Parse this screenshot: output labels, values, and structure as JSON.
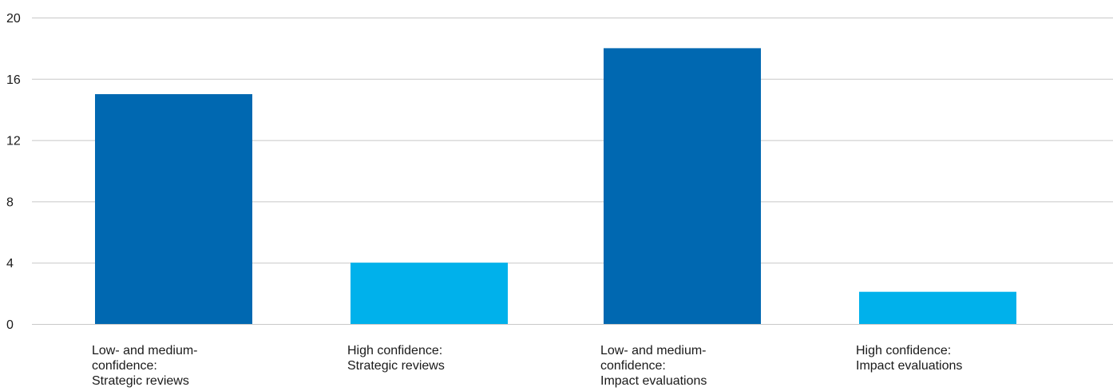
{
  "chart_data": {
    "type": "bar",
    "categories": [
      [
        "Low- and medium-",
        "confidence:",
        "Strategic reviews"
      ],
      [
        "High confidence:",
        "Strategic reviews"
      ],
      [
        "Low- and medium-",
        "confidence:",
        "Impact evaluations"
      ],
      [
        "High confidence:",
        "Impact evaluations"
      ]
    ],
    "values": [
      15,
      4,
      18,
      2.1
    ],
    "bar_colors": [
      "#0068b1",
      "#00b1eb",
      "#0068b1",
      "#00b1eb"
    ],
    "yticks": [
      "0",
      "4",
      "8",
      "12",
      "16",
      "20"
    ],
    "ylim": [
      0,
      20
    ],
    "title": "",
    "xlabel": "",
    "ylabel": "",
    "grid": true,
    "gridline_color": "#c8c8c8"
  }
}
